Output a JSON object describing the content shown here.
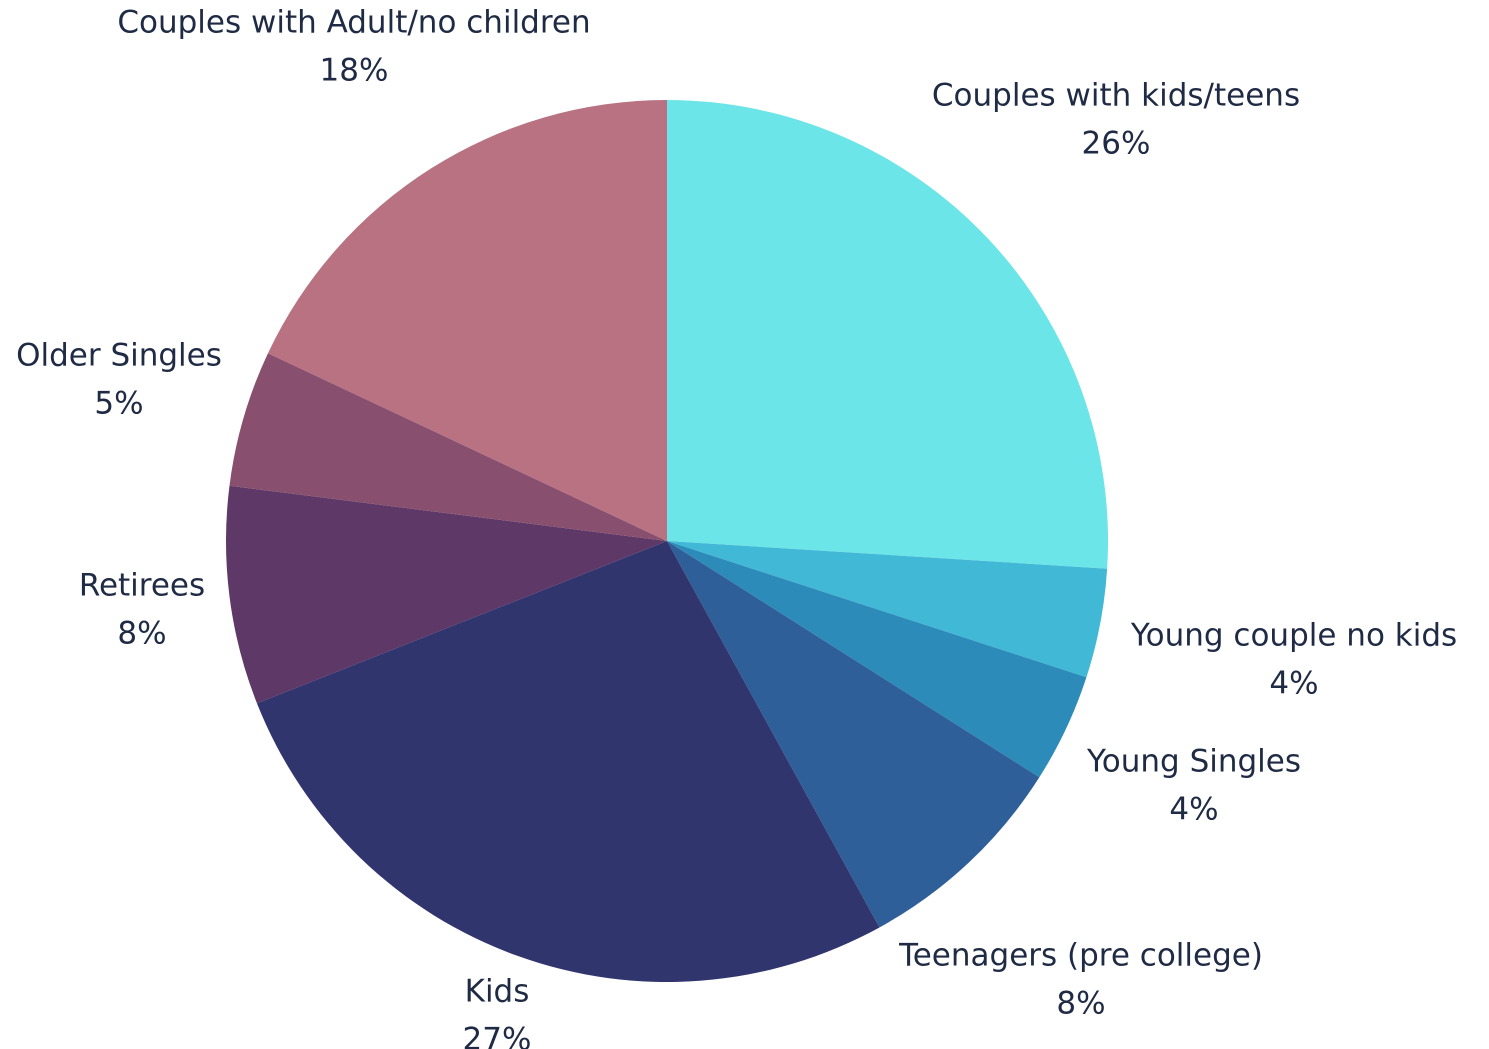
{
  "chart_data": {
    "type": "pie",
    "title": "",
    "slices": [
      {
        "label": "Couples with kids/teens",
        "value": 26,
        "display": "26%",
        "color": "#6ce5e8"
      },
      {
        "label": "Young couple no kids",
        "value": 4,
        "display": "4%",
        "color": "#41b8d5"
      },
      {
        "label": "Young Singles",
        "value": 4,
        "display": "4%",
        "color": "#2d8bba"
      },
      {
        "label": "Teenagers (pre college)",
        "value": 8,
        "display": "8%",
        "color": "#2f5f98"
      },
      {
        "label": "Kids",
        "value": 27,
        "display": "27%",
        "color": "#31356e"
      },
      {
        "label": "Retirees",
        "value": 8,
        "display": "8%",
        "color": "#5e3866"
      },
      {
        "label": "Older Singles",
        "value": 5,
        "display": "5%",
        "color": "#88506e"
      },
      {
        "label": "Couples with Adult/no children",
        "value": 18,
        "display": "18%",
        "color": "#b87282"
      }
    ]
  }
}
